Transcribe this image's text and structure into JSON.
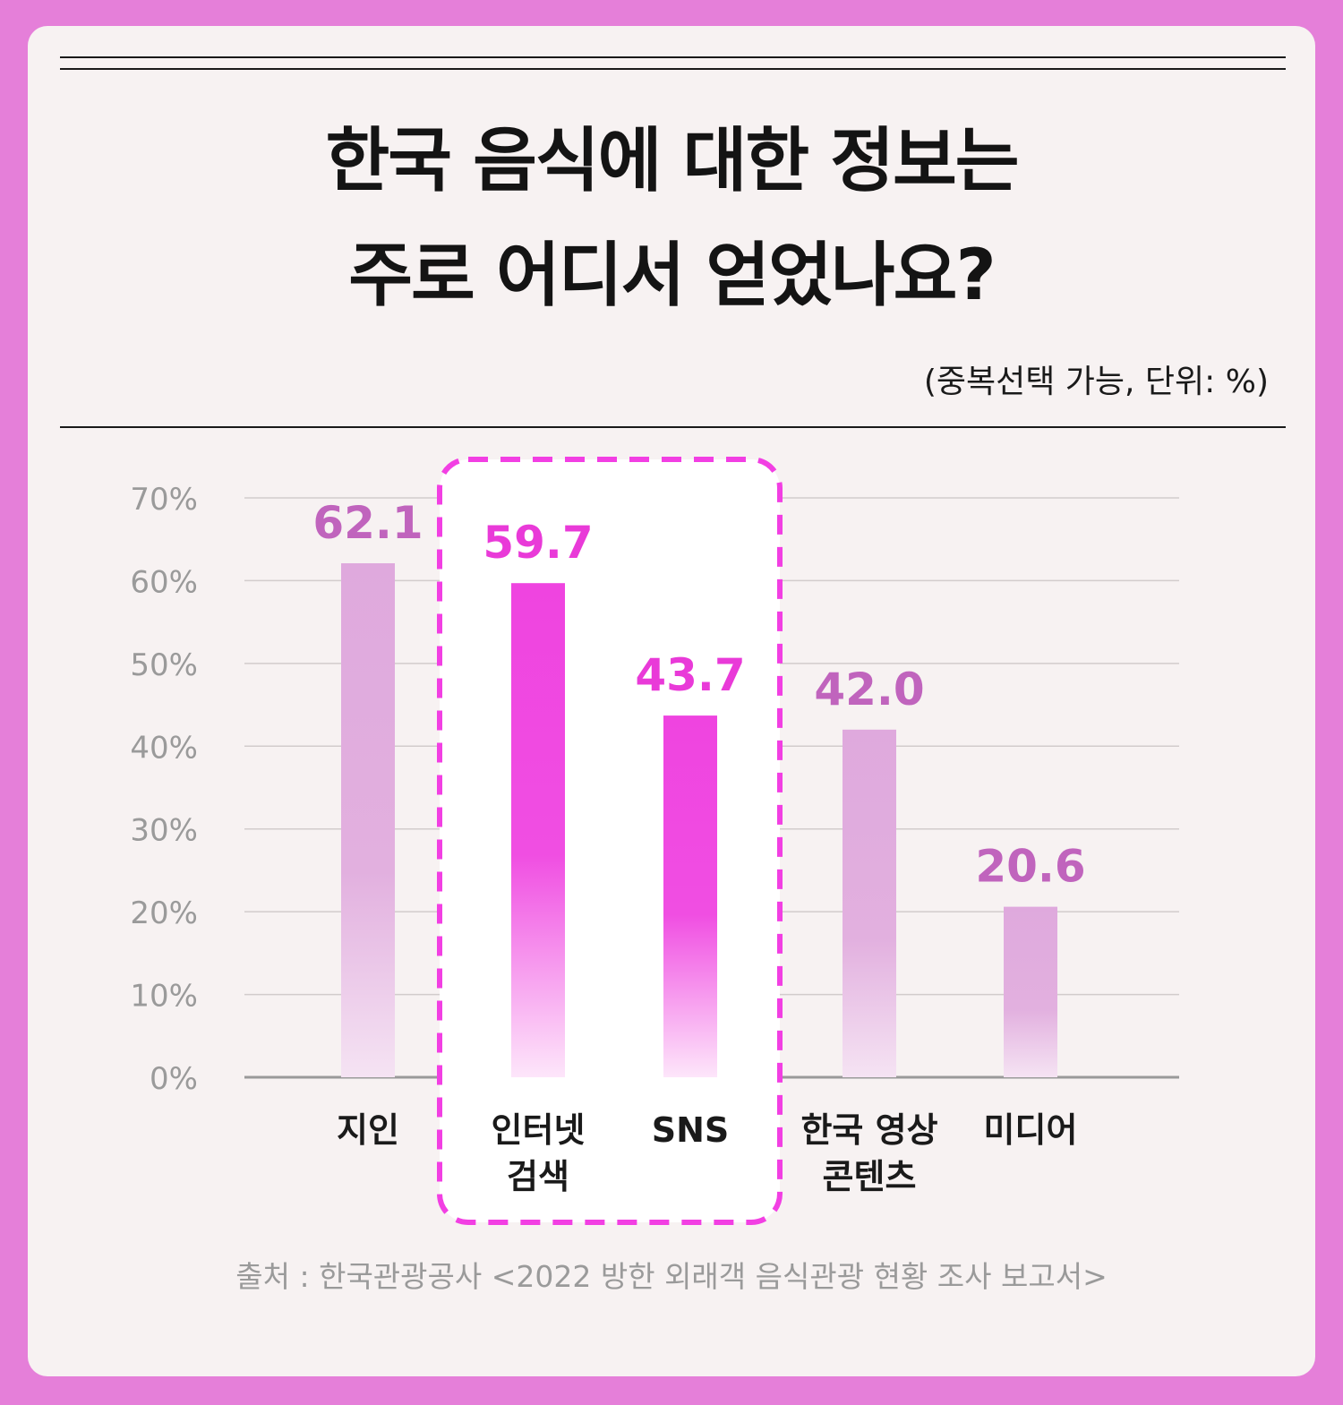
{
  "title_line1": "한국 음식에 대한 정보는",
  "title_line2_highlight": "주로 어디서",
  "title_line2_rest": " 얻었나요?",
  "note": "(중복선택 가능, 단위: %)",
  "source": "출처 : 한국관광공사 <2022 방한 외래객 음식관광 현황 조사 보고서>",
  "colors": {
    "background": "#e57fd9",
    "bar_default": "#dfa9dd",
    "bar_highlight": "#ef44e0",
    "label_default": "#c064bd",
    "label_highlight": "#e93ad8",
    "highlight_box_border": "#f23fe3"
  },
  "chart_data": {
    "type": "bar",
    "categories": [
      [
        "지인"
      ],
      [
        "인터넷",
        "검색"
      ],
      [
        "SNS"
      ],
      [
        "한국 영상",
        "콘텐츠"
      ],
      [
        "미디어"
      ]
    ],
    "values": [
      62.1,
      59.7,
      43.7,
      42.0,
      20.6
    ],
    "value_labels": [
      "62.1",
      "59.7",
      "43.7",
      "42.0",
      "20.6"
    ],
    "highlighted": [
      false,
      true,
      true,
      false,
      false
    ],
    "ylim": [
      0,
      70
    ],
    "yticks": [
      0,
      10,
      20,
      30,
      40,
      50,
      60,
      70
    ],
    "ytick_labels": [
      "0%",
      "10%",
      "20%",
      "30%",
      "40%",
      "50%",
      "60%",
      "70%"
    ],
    "grid": true
  }
}
